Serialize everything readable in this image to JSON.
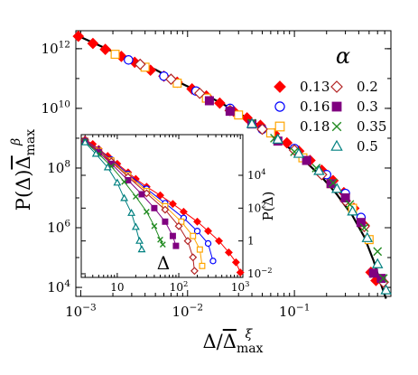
{
  "chart_data": [
    {
      "type": "scatter",
      "role": "main",
      "xscale": "log",
      "yscale": "log",
      "xlim": [
        0.0009,
        0.8
      ],
      "ylim": [
        5000,
        4000000000000.0
      ],
      "xlabel": "Δ/Δ̄ᵪ max",
      "xlabel_parts": {
        "base": "Δ/",
        "bar": "Δ",
        "sub": "max",
        "sup": "ξ"
      },
      "ylabel_parts": {
        "base": "P(Δ)",
        "bar": "Δ",
        "sub": "max",
        "sup": "β"
      },
      "xticks": [
        {
          "value": 0.001,
          "mant": "10",
          "exp": "−3"
        },
        {
          "value": 0.01,
          "mant": "10",
          "exp": "−2"
        },
        {
          "value": 0.1,
          "mant": "10",
          "exp": "−1"
        }
      ],
      "yticks": [
        {
          "value": 10000,
          "mant": "10",
          "exp": "4"
        },
        {
          "value": 1000000,
          "mant": "10",
          "exp": "6"
        },
        {
          "value": 100000000,
          "mant": "10",
          "exp": "8"
        },
        {
          "value": 10000000000,
          "mant": "10",
          "exp": "10"
        },
        {
          "value": 1000000000000,
          "mant": "10",
          "exp": "12"
        }
      ],
      "legend_title": "α",
      "legend_position": "top-right",
      "fit_curve": [
        [
          0.00092,
          2800000000000.0
        ],
        [
          0.0013,
          1600000000000.0
        ],
        [
          0.002,
          800000000000.0
        ],
        [
          0.003,
          430000000000.0
        ],
        [
          0.005,
          200000000000.0
        ],
        [
          0.008,
          80000000000.0
        ],
        [
          0.012,
          40000000000.0
        ],
        [
          0.02,
          16000000000.0
        ],
        [
          0.03,
          7000000000.0
        ],
        [
          0.05,
          2300000000.0
        ],
        [
          0.08,
          650000000.0
        ],
        [
          0.12,
          200000000.0
        ],
        [
          0.18,
          50000000.0
        ],
        [
          0.25,
          13000000.0
        ],
        [
          0.35,
          2500000.0
        ],
        [
          0.45,
          500000.0
        ],
        [
          0.55,
          80000.0
        ],
        [
          0.65,
          12000.0
        ],
        [
          0.72,
          4200
        ]
      ],
      "series": [
        {
          "name": "0.13",
          "marker": "diamond",
          "filled": true,
          "color": "#ff0000",
          "points": [
            [
              0.00095,
              2600000000000.0
            ],
            [
              0.0013,
              1500000000000.0
            ],
            [
              0.0017,
              950000000000.0
            ],
            [
              0.0024,
              550000000000.0
            ],
            [
              0.0032,
              350000000000.0
            ],
            [
              0.0045,
              190000000000.0
            ],
            [
              0.006,
              120000000000.0
            ],
            [
              0.008,
              75000000000.0
            ],
            [
              0.011,
              45000000000.0
            ],
            [
              0.015,
              26000000000.0
            ],
            [
              0.02,
              15000000000.0
            ],
            [
              0.027,
              8000000000.0
            ],
            [
              0.036,
              4800000000.0
            ],
            [
              0.048,
              2700000000.0
            ],
            [
              0.065,
              1400000000.0
            ],
            [
              0.085,
              700000000.0
            ],
            [
              0.11,
              370000000.0
            ],
            [
              0.14,
              180000000.0
            ],
            [
              0.18,
              85000000.0
            ],
            [
              0.23,
              38000000.0
            ],
            [
              0.29,
              15000000.0
            ],
            [
              0.36,
              4500000.0
            ],
            [
              0.45,
              1200000.0
            ],
            [
              0.52,
              32000.0
            ],
            [
              0.58,
              17000.0
            ]
          ]
        },
        {
          "name": "0.16",
          "marker": "circle",
          "filled": false,
          "color": "#0000ff",
          "points": [
            [
              0.0028,
              420000000000.0
            ],
            [
              0.006,
              120000000000.0
            ],
            [
              0.012,
              38000000000.0
            ],
            [
              0.025,
              10000000000.0
            ],
            [
              0.05,
              2000000000.0
            ],
            [
              0.1,
              450000000.0
            ],
            [
              0.2,
              60000000.0
            ],
            [
              0.3,
              14000000.0
            ],
            [
              0.42,
              2200000.0
            ]
          ]
        },
        {
          "name": "0.18",
          "marker": "square",
          "filled": false,
          "color": "#ffa500",
          "points": [
            [
              0.0021,
              650000000000.0
            ],
            [
              0.004,
              240000000000.0
            ],
            [
              0.008,
              70000000000.0
            ],
            [
              0.015,
              22000000000.0
            ],
            [
              0.03,
              6000000000.0
            ],
            [
              0.06,
              1500000000.0
            ],
            [
              0.12,
              220000000.0
            ],
            [
              0.22,
              30000000.0
            ],
            [
              0.35,
              4500000.0
            ],
            [
              0.5,
              400000.0
            ]
          ]
        },
        {
          "name": "0.2",
          "marker": "diamond",
          "filled": false,
          "color": "#b22222",
          "points": [
            [
              0.0036,
              300000000000.0
            ],
            [
              0.007,
              95000000000.0
            ],
            [
              0.013,
              32000000000.0
            ],
            [
              0.025,
              8500000000.0
            ],
            [
              0.05,
              2000000000.0
            ],
            [
              0.1,
              400000000.0
            ],
            [
              0.18,
              60000000.0
            ],
            [
              0.3,
              8000000.0
            ],
            [
              0.45,
              1100000.0
            ],
            [
              0.68,
              15000.0
            ]
          ]
        },
        {
          "name": "0.3",
          "marker": "square",
          "filled": true,
          "color": "#800080",
          "points": [
            [
              0.016,
              18000000000.0
            ],
            [
              0.025,
              8000000000.0
            ],
            [
              0.04,
              3000000000.0
            ],
            [
              0.07,
              800000000.0
            ],
            [
              0.13,
              180000000.0
            ],
            [
              0.22,
              30000000.0
            ],
            [
              0.3,
              10000000.0
            ],
            [
              0.42,
              1500000.0
            ],
            [
              0.55,
              30000.0
            ],
            [
              0.65,
              20000.0
            ]
          ]
        },
        {
          "name": "0.35",
          "marker": "cross",
          "filled": false,
          "color": "#228b22",
          "points": [
            [
              0.04,
              3200000000.0
            ],
            [
              0.065,
              1000000000.0
            ],
            [
              0.1,
              350000000.0
            ],
            [
              0.16,
              100000000.0
            ],
            [
              0.23,
              32000000.0
            ],
            [
              0.33,
              6000000.0
            ],
            [
              0.45,
              1000000.0
            ],
            [
              0.6,
              160000.0
            ],
            [
              0.68,
              20000.0
            ]
          ]
        },
        {
          "name": "0.5",
          "marker": "triangle",
          "filled": false,
          "color": "#008080",
          "points": [
            [
              0.04,
              3000000000.0
            ],
            [
              0.07,
              900000000.0
            ],
            [
              0.11,
              300000000.0
            ],
            [
              0.17,
              80000000.0
            ],
            [
              0.25,
              20000000.0
            ],
            [
              0.35,
              3500000.0
            ],
            [
              0.48,
              450000.0
            ],
            [
              0.6,
              60000.0
            ],
            [
              0.72,
              8000
            ]
          ]
        }
      ]
    },
    {
      "type": "line",
      "role": "inset",
      "xscale": "log",
      "yscale": "log",
      "xlim": [
        2.6,
        1100
      ],
      "ylim": [
        0.006,
        3000000
      ],
      "xlabel": "Δ",
      "ylabel": "P(Δ)",
      "xticks": [
        {
          "value": 10,
          "mant": "10",
          "exp": ""
        },
        {
          "value": 100,
          "mant": "10",
          "exp": "2"
        },
        {
          "value": 1000,
          "mant": "10",
          "exp": "3"
        }
      ],
      "yticks": [
        {
          "value": 0.01,
          "mant": "10",
          "exp": "−2"
        },
        {
          "value": 1,
          "mant": "1",
          "exp": ""
        },
        {
          "value": 100,
          "mant": "10",
          "exp": "2"
        },
        {
          "value": 10000,
          "mant": "10",
          "exp": "4"
        }
      ],
      "series": [
        {
          "name": "0.13",
          "marker": "diamond",
          "filled": true,
          "color": "#ff0000",
          "points": [
            [
              3,
              1500000
            ],
            [
              4,
              800000
            ],
            [
              5,
              400000
            ],
            [
              7,
              150000
            ],
            [
              10,
              50000
            ],
            [
              15,
              15000
            ],
            [
              20,
              6000
            ],
            [
              30,
              2000
            ],
            [
              50,
              600
            ],
            [
              80,
              180
            ],
            [
              120,
              60
            ],
            [
              200,
              15
            ],
            [
              300,
              4
            ],
            [
              450,
              1
            ],
            [
              650,
              0.2
            ],
            [
              850,
              0.05
            ],
            [
              1000,
              0.012
            ]
          ]
        },
        {
          "name": "0.16",
          "marker": "circle",
          "filled": false,
          "color": "#0000ff",
          "points": [
            [
              3,
              1400000
            ],
            [
              5,
              350000
            ],
            [
              8,
              90000
            ],
            [
              15,
              12000
            ],
            [
              30,
              1500
            ],
            [
              60,
              200
            ],
            [
              120,
              25
            ],
            [
              200,
              4
            ],
            [
              300,
              0.7
            ],
            [
              360,
              0.06
            ]
          ]
        },
        {
          "name": "0.18",
          "marker": "square",
          "filled": false,
          "color": "#ffa500",
          "points": [
            [
              3,
              1300000
            ],
            [
              5,
              320000
            ],
            [
              8,
              80000
            ],
            [
              15,
              10000
            ],
            [
              30,
              1100
            ],
            [
              60,
              130
            ],
            [
              110,
              15
            ],
            [
              170,
              2
            ],
            [
              220,
              0.3
            ],
            [
              240,
              0.03
            ]
          ]
        },
        {
          "name": "0.2",
          "marker": "diamond",
          "filled": false,
          "color": "#b22222",
          "points": [
            [
              3,
              1300000
            ],
            [
              5,
              300000
            ],
            [
              8,
              70000
            ],
            [
              15,
              8000
            ],
            [
              30,
              800
            ],
            [
              60,
              80
            ],
            [
              100,
              8
            ],
            [
              140,
              1
            ],
            [
              170,
              0.1
            ],
            [
              180,
              0.015
            ]
          ]
        },
        {
          "name": "0.3",
          "marker": "square",
          "filled": true,
          "color": "#800080",
          "points": [
            [
              3,
              1200000
            ],
            [
              5,
              250000
            ],
            [
              8,
              50000
            ],
            [
              15,
              5000
            ],
            [
              25,
              700
            ],
            [
              40,
              100
            ],
            [
              60,
              15
            ],
            [
              80,
              2
            ],
            [
              90,
              0.5
            ]
          ]
        },
        {
          "name": "0.35",
          "marker": "cross",
          "filled": false,
          "color": "#228b22",
          "points": [
            [
              3,
              1100000
            ],
            [
              5,
              200000
            ],
            [
              8,
              35000
            ],
            [
              13,
              4000
            ],
            [
              20,
              500
            ],
            [
              30,
              60
            ],
            [
              40,
              8
            ],
            [
              50,
              1.2
            ],
            [
              55,
              0.6
            ]
          ]
        },
        {
          "name": "0.5",
          "marker": "triangle",
          "filled": false,
          "color": "#008080",
          "points": [
            [
              3,
              1000000
            ],
            [
              4.5,
              200000
            ],
            [
              7,
              30000
            ],
            [
              10,
              3500
            ],
            [
              13,
              400
            ],
            [
              17,
              50
            ],
            [
              20,
              7
            ],
            [
              23,
              1
            ],
            [
              25,
              0.3
            ]
          ]
        }
      ]
    }
  ]
}
